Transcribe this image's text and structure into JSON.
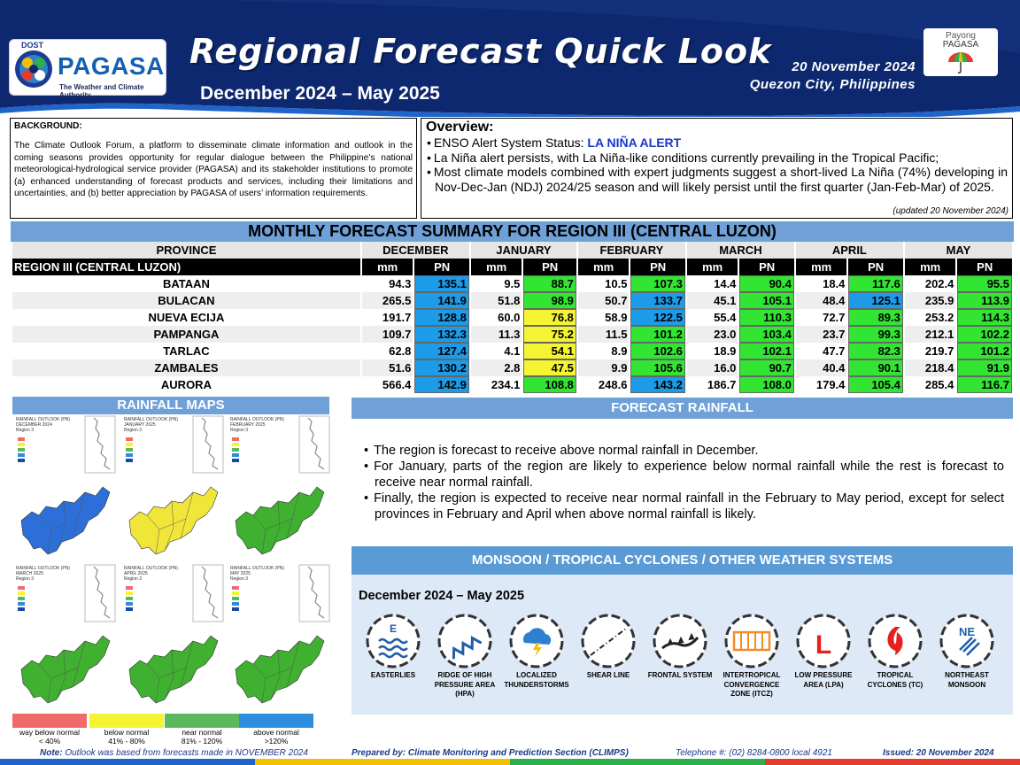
{
  "header": {
    "dost": "DOST",
    "agency": "PAGASA",
    "agency_tagline": "The Weather and Climate Authority",
    "title": "Regional Forecast Quick Look",
    "period": "December 2024 – May 2025",
    "date": "20 November 2024",
    "place": "Quezon City, Philippines",
    "payong_line1": "Payong",
    "payong_line2": "PAGASA"
  },
  "background": {
    "heading": "BACKGROUND:",
    "text": "The Climate Outlook Forum, a platform to disseminate climate information and outlook in the coming seasons provides opportunity for regular dialogue between the Philippine’s national meteorological-hydrological service provider (PAGASA) and its stakeholder institutions to promote (a) enhanced understanding of forecast products and services, including their limitations and uncertainties, and (b) better appreciation by PAGASA of users’ information requirements."
  },
  "overview": {
    "heading": "Overview:",
    "enso_label": "ENSO Alert System Status: ",
    "enso_status": "LA NIÑA ALERT",
    "bullet2": "La Niña alert persists, with La Niña-like conditions currently prevailing in the Tropical Pacific;",
    "bullet3": "Most climate models combined with expert judgments suggest a short-lived La Niña (74%) developing in Nov-Dec-Jan (NDJ) 2024/25 season and will likely persist until the first quarter (Jan-Feb-Mar) of 2025.",
    "updated": "(updated 20 November 2024)"
  },
  "table": {
    "title": "MONTHLY FORECAST SUMMARY FOR REGION III (CENTRAL LUZON)",
    "province_header": "PROVINCE",
    "region_label": "REGION III (CENTRAL LUZON)",
    "unit_mm": "mm",
    "unit_pn": "PN",
    "months": [
      "DECEMBER",
      "JANUARY",
      "FEBRUARY",
      "MARCH",
      "APRIL",
      "MAY"
    ],
    "rows": [
      {
        "province": "BATAAN",
        "mm": [
          "94.3",
          "9.5",
          "10.5",
          "14.4",
          "18.4",
          "202.4"
        ],
        "pn": [
          "135.1",
          "88.7",
          "107.3",
          "90.4",
          "117.6",
          "95.5"
        ],
        "cls": [
          "above",
          "near",
          "near",
          "near",
          "near",
          "near"
        ]
      },
      {
        "province": "BULACAN",
        "mm": [
          "265.5",
          "51.8",
          "50.7",
          "45.1",
          "48.4",
          "235.9"
        ],
        "pn": [
          "141.9",
          "98.9",
          "133.7",
          "105.1",
          "125.1",
          "113.9"
        ],
        "cls": [
          "above",
          "near",
          "above",
          "near",
          "above",
          "near"
        ]
      },
      {
        "province": "NUEVA ECIJA",
        "mm": [
          "191.7",
          "60.0",
          "58.9",
          "55.4",
          "72.7",
          "253.2"
        ],
        "pn": [
          "128.8",
          "76.8",
          "122.5",
          "110.3",
          "89.3",
          "114.3"
        ],
        "cls": [
          "above",
          "below",
          "above",
          "near",
          "near",
          "near"
        ]
      },
      {
        "province": "PAMPANGA",
        "mm": [
          "109.7",
          "11.3",
          "11.5",
          "23.0",
          "23.7",
          "212.1"
        ],
        "pn": [
          "132.3",
          "75.2",
          "101.2",
          "103.4",
          "99.3",
          "102.2"
        ],
        "cls": [
          "above",
          "below",
          "near",
          "near",
          "near",
          "near"
        ]
      },
      {
        "province": "TARLAC",
        "mm": [
          "62.8",
          "4.1",
          "8.9",
          "18.9",
          "47.7",
          "219.7"
        ],
        "pn": [
          "127.4",
          "54.1",
          "102.6",
          "102.1",
          "82.3",
          "101.2"
        ],
        "cls": [
          "above",
          "below",
          "near",
          "near",
          "near",
          "near"
        ]
      },
      {
        "province": "ZAMBALES",
        "mm": [
          "51.6",
          "2.8",
          "9.9",
          "16.0",
          "40.4",
          "218.4"
        ],
        "pn": [
          "130.2",
          "47.5",
          "105.6",
          "90.7",
          "90.1",
          "91.9"
        ],
        "cls": [
          "above",
          "below",
          "near",
          "near",
          "near",
          "near"
        ]
      },
      {
        "province": "AURORA",
        "mm": [
          "566.4",
          "234.1",
          "248.6",
          "186.7",
          "179.4",
          "285.4"
        ],
        "pn": [
          "142.9",
          "108.8",
          "143.2",
          "108.0",
          "105.4",
          "116.7"
        ],
        "cls": [
          "above",
          "near",
          "above",
          "near",
          "near",
          "near"
        ]
      }
    ]
  },
  "colors": {
    "above": "#1c9be8",
    "near": "#33e533",
    "below": "#f4f432",
    "way_below": "#f06a6a",
    "banner": "#6fa1d8",
    "header_navy": "#0e2870"
  },
  "maps": {
    "heading": "RAINFALL MAPS",
    "items": [
      {
        "title": "RAINFALL OUTLOOK (PN)",
        "month": "DECEMBER 2024",
        "region": "Region 3",
        "fill": "above"
      },
      {
        "title": "RAINFALL OUTLOOK (PN)",
        "month": "JANUARY 2025",
        "region": "Region 3",
        "fill": "below"
      },
      {
        "title": "RAINFALL OUTLOOK (PN)",
        "month": "FEBRUARY 2025",
        "region": "Region 3",
        "fill": "near"
      },
      {
        "title": "RAINFALL OUTLOOK (PN)",
        "month": "MARCH 2025",
        "region": "Region 3",
        "fill": "near"
      },
      {
        "title": "RAINFALL OUTLOOK (PN)",
        "month": "APRIL 2025",
        "region": "Region 3",
        "fill": "near"
      },
      {
        "title": "RAINFALL OUTLOOK (PN)",
        "month": "MAY 2025",
        "region": "Region 3",
        "fill": "near"
      }
    ],
    "legend": [
      {
        "label": "way below normal",
        "range": "< 40%",
        "color": "#f06a6a"
      },
      {
        "label": "below normal",
        "range": "41% - 80%",
        "color": "#f4f432"
      },
      {
        "label": "near normal",
        "range": "81% - 120%",
        "color": "#5cb85c"
      },
      {
        "label": "above normal",
        "range": ">120%",
        "color": "#2d8ee0"
      }
    ]
  },
  "forecast_rainfall": {
    "heading": "FORECAST RAINFALL",
    "bullets": [
      "The region is forecast to receive above normal rainfall in December.",
      "For January, parts of the region are likely to experience below normal rainfall while the rest is forecast to receive near normal rainfall.",
      "Finally, the region is expected to receive near normal rainfall in the February to May period, except for select provinces in February and April when above normal rainfall is likely."
    ]
  },
  "systems": {
    "heading": "MONSOON / TROPICAL CYCLONES / OTHER WEATHER SYSTEMS",
    "period": "December 2024 – May 2025",
    "items": [
      {
        "label": "EASTERLIES",
        "icon": "easterlies-icon"
      },
      {
        "label": "RIDGE OF HIGH PRESSURE AREA (HPA)",
        "icon": "ridge-icon"
      },
      {
        "label": "LOCALIZED THUNDERSTORMS",
        "icon": "thunderstorm-icon"
      },
      {
        "label": "SHEAR LINE",
        "icon": "shear-line-icon"
      },
      {
        "label": "FRONTAL SYSTEM",
        "icon": "frontal-system-icon"
      },
      {
        "label": "INTERTROPICAL CONVERGENCE ZONE (ITCZ)",
        "icon": "itcz-icon"
      },
      {
        "label": "LOW PRESSURE AREA (LPA)",
        "icon": "lpa-icon"
      },
      {
        "label": "TROPICAL CYCLONES (TC)",
        "icon": "tropical-cyclone-icon"
      },
      {
        "label": "NORTHEAST MONSOON",
        "icon": "northeast-monsoon-icon"
      }
    ]
  },
  "footer": {
    "note_label": "Note:",
    "note": "Outlook was based from forecasts made in NOVEMBER 2024",
    "prepared": "Prepared by: Climate Monitoring and Prediction Section (CLIMPS)",
    "telephone": "Telephone #: (02) 8284-0800 local 4921",
    "issued": "Issued: 20 November 2024"
  }
}
